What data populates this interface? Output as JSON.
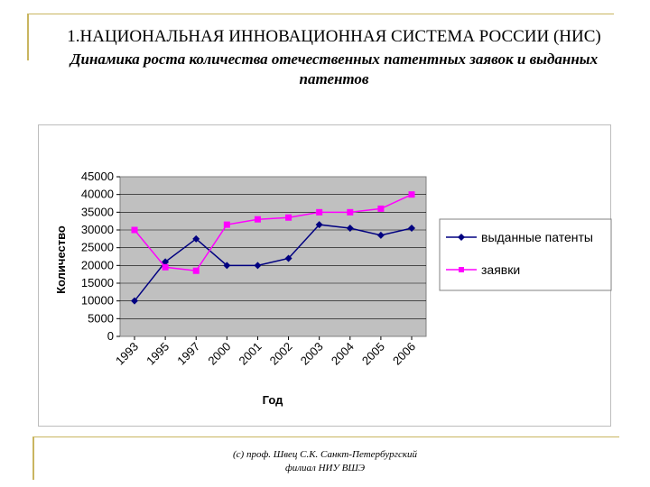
{
  "slide": {
    "title": "1.НАЦИОНАЛЬНАЯ ИННОВАЦИОННАЯ СИСТЕМА РОССИИ (НИС)",
    "subtitle": "Динамика роста количества отечественных патентных заявок и выданных патентов",
    "footer_line1": "(с) проф. Швец С.К. Санкт-Петербургский",
    "footer_line2": "филиал НИУ ВШЭ"
  },
  "chart_data": {
    "type": "line",
    "xlabel": "Год",
    "ylabel": "Количество",
    "categories": [
      "1993",
      "1995",
      "1997",
      "2000",
      "2001",
      "2002",
      "2003",
      "2004",
      "2005",
      "2006"
    ],
    "ylim": [
      0,
      45000
    ],
    "yticks": [
      0,
      5000,
      10000,
      15000,
      20000,
      25000,
      30000,
      35000,
      40000,
      45000
    ],
    "grid": true,
    "legend_position": "right",
    "series": [
      {
        "name": "выданные патенты",
        "color": "#000080",
        "marker": "diamond",
        "values": [
          10000,
          21000,
          27500,
          20000,
          20000,
          22000,
          31500,
          30500,
          28500,
          30500
        ]
      },
      {
        "name": "заявки",
        "color": "#ff00ff",
        "marker": "square",
        "values": [
          30000,
          19500,
          18500,
          31500,
          33000,
          33500,
          35000,
          35000,
          36000,
          40000
        ]
      }
    ],
    "plot_background": "#c0c0c0"
  }
}
